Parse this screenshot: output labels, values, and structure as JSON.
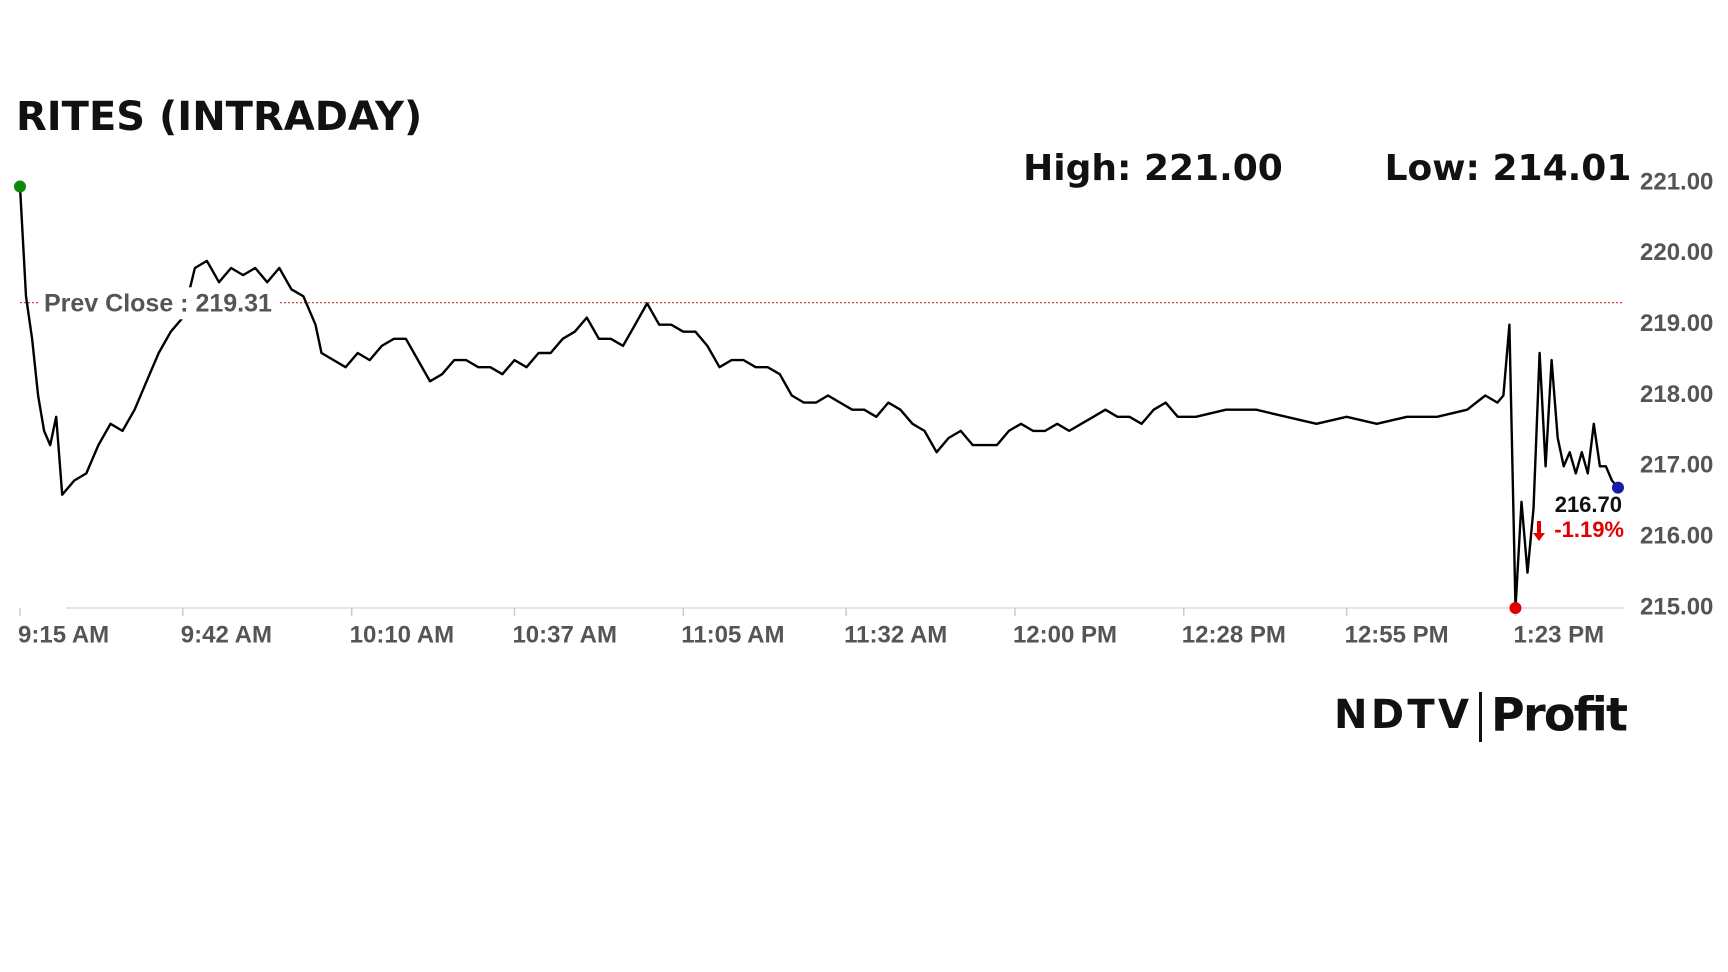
{
  "chart_data": {
    "type": "line",
    "title": "RITES (INTRADAY)",
    "high_label": "High: 221.00",
    "low_label": "Low: 214.01",
    "prev_close": 219.31,
    "prev_close_label": "Prev Close : 219.31",
    "prev_close_color": "#c0392b",
    "last_value_label": "216.70",
    "change_label": "-1.19%",
    "change_color": "#e00000",
    "color": "#000000",
    "start_marker_color": "#0a8a0a",
    "low_marker_color": "#e00000",
    "last_marker_color": "#1a1aa8",
    "x": [
      "9:15 AM",
      "9:16 AM",
      "9:17 AM",
      "9:18 AM",
      "9:19 AM",
      "9:20 AM",
      "9:21 AM",
      "9:22 AM",
      "9:24 AM",
      "9:26 AM",
      "9:28 AM",
      "9:30 AM",
      "9:32 AM",
      "9:34 AM",
      "9:36 AM",
      "9:38 AM",
      "9:40 AM",
      "9:42 AM",
      "9:44 AM",
      "9:46 AM",
      "9:48 AM",
      "9:50 AM",
      "9:52 AM",
      "9:54 AM",
      "9:56 AM",
      "9:58 AM",
      "10:00 AM",
      "10:02 AM",
      "10:04 AM",
      "10:05 AM",
      "10:07 AM",
      "10:09 AM",
      "10:11 AM",
      "10:13 AM",
      "10:15 AM",
      "10:17 AM",
      "10:19 AM",
      "10:21 AM",
      "10:23 AM",
      "10:25 AM",
      "10:27 AM",
      "10:29 AM",
      "10:31 AM",
      "10:33 AM",
      "10:35 AM",
      "10:37 AM",
      "10:39 AM",
      "10:41 AM",
      "10:43 AM",
      "10:45 AM",
      "10:47 AM",
      "10:49 AM",
      "10:51 AM",
      "10:53 AM",
      "10:55 AM",
      "10:57 AM",
      "10:59 AM",
      "11:01 AM",
      "11:03 AM",
      "11:05 AM",
      "11:07 AM",
      "11:09 AM",
      "11:11 AM",
      "11:13 AM",
      "11:15 AM",
      "11:17 AM",
      "11:19 AM",
      "11:21 AM",
      "11:23 AM",
      "11:25 AM",
      "11:27 AM",
      "11:29 AM",
      "11:31 AM",
      "11:33 AM",
      "11:35 AM",
      "11:37 AM",
      "11:39 AM",
      "11:41 AM",
      "11:43 AM",
      "11:45 AM",
      "11:47 AM",
      "11:49 AM",
      "11:51 AM",
      "11:53 AM",
      "11:55 AM",
      "11:57 AM",
      "11:59 AM",
      "12:01 PM",
      "12:03 PM",
      "12:05 PM",
      "12:07 PM",
      "12:09 PM",
      "12:11 PM",
      "12:13 PM",
      "12:15 PM",
      "12:17 PM",
      "12:19 PM",
      "12:21 PM",
      "12:23 PM",
      "12:25 PM",
      "12:27 PM",
      "12:30 PM",
      "12:35 PM",
      "12:40 PM",
      "12:45 PM",
      "12:50 PM",
      "12:55 PM",
      "1:00 PM",
      "1:05 PM",
      "1:10 PM",
      "1:15 PM",
      "1:18 PM",
      "1:20 PM",
      "1:21 PM",
      "1:22 PM",
      "1:23 PM",
      "1:24 PM",
      "1:25 PM",
      "1:26 PM",
      "1:27 PM",
      "1:28 PM",
      "1:29 PM",
      "1:30 PM",
      "1:31 PM",
      "1:32 PM",
      "1:33 PM",
      "1:34 PM",
      "1:35 PM",
      "1:36 PM",
      "1:37 PM",
      "1:38 PM",
      "1:39 PM",
      "1:40 PM"
    ],
    "values": [
      220.95,
      219.4,
      218.8,
      218.0,
      217.5,
      217.3,
      217.7,
      216.6,
      216.8,
      216.9,
      217.3,
      217.6,
      217.5,
      217.8,
      218.2,
      218.6,
      218.9,
      219.1,
      219.8,
      219.9,
      219.6,
      219.8,
      219.7,
      219.8,
      219.6,
      219.8,
      219.5,
      219.4,
      219.0,
      218.6,
      218.5,
      218.4,
      218.6,
      218.5,
      218.7,
      218.8,
      218.8,
      218.5,
      218.2,
      218.3,
      218.5,
      218.5,
      218.4,
      218.4,
      218.3,
      218.5,
      218.4,
      218.6,
      218.6,
      218.8,
      218.9,
      219.1,
      218.8,
      218.8,
      218.7,
      219.0,
      219.3,
      219.0,
      219.0,
      218.9,
      218.9,
      218.7,
      218.4,
      218.5,
      218.5,
      218.4,
      218.4,
      218.3,
      218.0,
      217.9,
      217.9,
      218.0,
      217.9,
      217.8,
      217.8,
      217.7,
      217.9,
      217.8,
      217.6,
      217.5,
      217.2,
      217.4,
      217.5,
      217.3,
      217.3,
      217.3,
      217.5,
      217.6,
      217.5,
      217.5,
      217.6,
      217.5,
      217.6,
      217.7,
      217.8,
      217.7,
      217.7,
      217.6,
      217.8,
      217.9,
      217.7,
      217.7,
      217.8,
      217.8,
      217.7,
      217.6,
      217.7,
      217.6,
      217.7,
      217.7,
      217.8,
      218.0,
      217.9,
      218.0,
      219.0,
      215.0,
      216.5,
      215.5,
      216.4,
      218.6,
      217.0,
      218.5,
      217.4,
      217.0,
      217.2,
      216.9,
      217.2,
      216.9,
      217.6,
      217.0,
      217.0,
      216.8,
      216.7
    ],
    "xlim": [
      "9:15 AM",
      "1:41 PM"
    ],
    "xticks": [
      "9:15 AM",
      "9:42 AM",
      "10:10 AM",
      "10:37 AM",
      "11:05 AM",
      "11:32 AM",
      "12:00 PM",
      "12:28 PM",
      "12:55 PM",
      "1:23 PM"
    ],
    "ylim": [
      215,
      221
    ],
    "yticks": [
      {
        "value": 215,
        "label": "215.00"
      },
      {
        "value": 216,
        "label": "216.00"
      },
      {
        "value": 217,
        "label": "217.00"
      },
      {
        "value": 218,
        "label": "218.00"
      },
      {
        "value": 219,
        "label": "219.00"
      },
      {
        "value": 220,
        "label": "220.00"
      },
      {
        "value": 221,
        "label": "221.00"
      }
    ],
    "grid": false,
    "logo": {
      "left": "NDTV",
      "right": "Profit"
    }
  }
}
